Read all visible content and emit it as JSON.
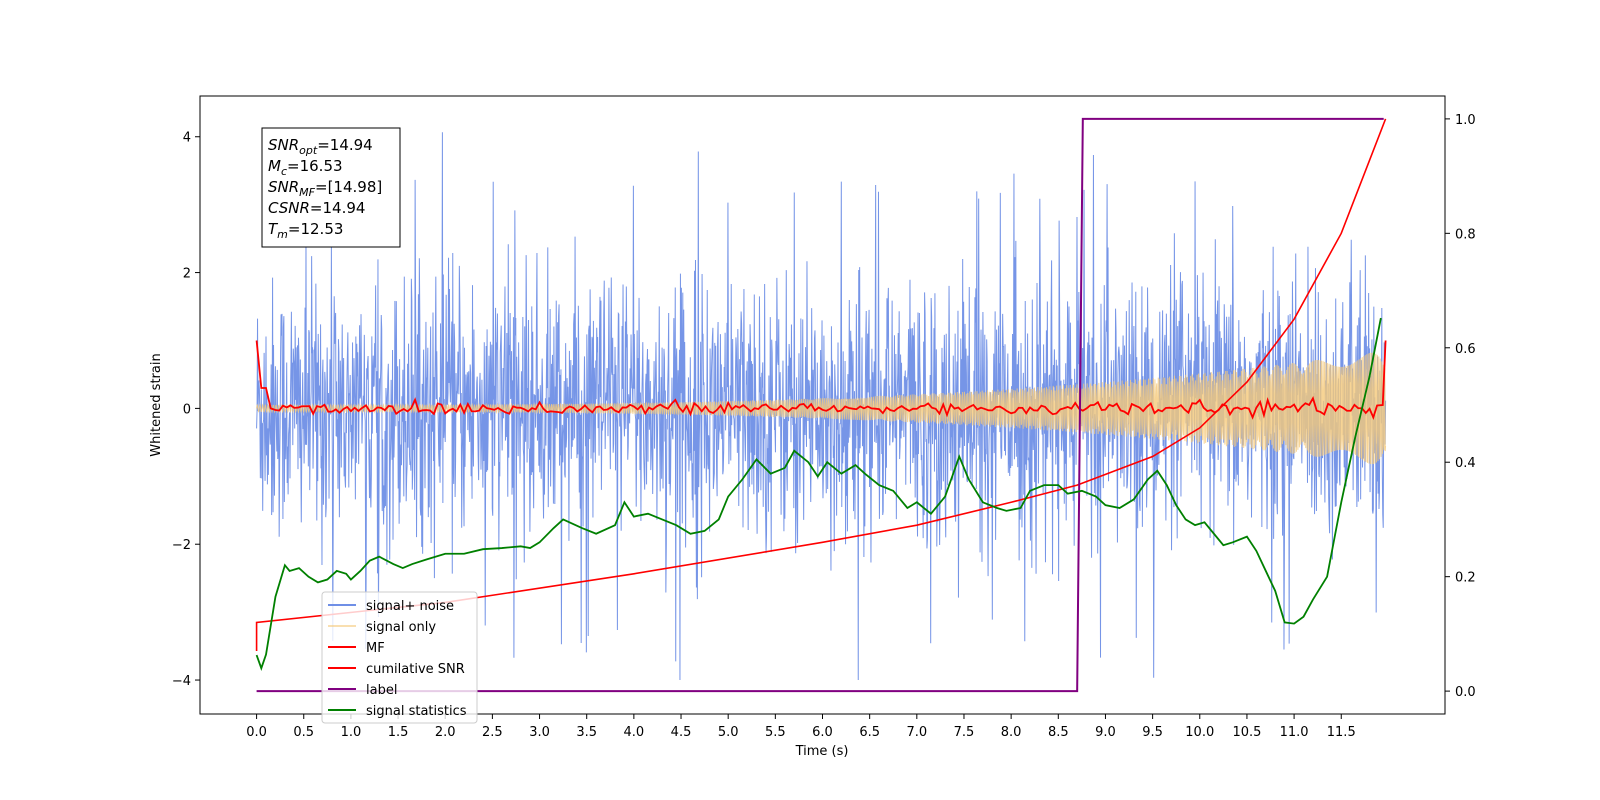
{
  "chart_data": {
    "type": "line",
    "xlabel": "Time (s)",
    "ylabel_left": "Whitened strain",
    "xlim": [
      -0.6,
      12.6
    ],
    "ylim_left": [
      -4.5,
      4.6
    ],
    "ylim_right": [
      -0.04,
      1.04
    ],
    "x_ticks": [
      "0.0",
      "0.5",
      "1.0",
      "1.5",
      "2.0",
      "2.5",
      "3.0",
      "3.5",
      "4.0",
      "4.5",
      "5.0",
      "5.5",
      "6.0",
      "6.5",
      "7.0",
      "7.5",
      "8.0",
      "8.5",
      "9.0",
      "9.5",
      "10.0",
      "10.5",
      "11.0",
      "11.5"
    ],
    "y_ticks_left": [
      "4",
      "2",
      "0",
      "−2",
      "−4"
    ],
    "y_ticks_right": [
      "1.0",
      "0.8",
      "0.6",
      "0.4",
      "0.2",
      "0.0"
    ],
    "annotation": [
      {
        "base": "SNR",
        "sub": "opt",
        "value": "=14.94"
      },
      {
        "base": "M",
        "sub": "c",
        "value": "=16.53"
      },
      {
        "base": "SNR",
        "sub": "MF",
        "value": "=[14.98]"
      },
      {
        "base": "CSNR",
        "sub": "",
        "value": "=14.94"
      },
      {
        "base": "T",
        "sub": "m",
        "value": "=12.53"
      }
    ],
    "legend_placement": "lower-left",
    "grid": false,
    "series": [
      {
        "name": "signal+ noise",
        "axis": "left",
        "color": "#6f8fe6",
        "description": "whitened noisy strain, amplitude ~ ±2.5 with spikes to ±4"
      },
      {
        "name": "signal only",
        "axis": "left",
        "color": "#f5c97a",
        "description": "chirp, amplitude grows from 0.05 to 0.85"
      },
      {
        "name": "MF",
        "axis": "left",
        "color": "#ff0000",
        "start": 1.0,
        "level": 0.0,
        "end": 1.0
      },
      {
        "name": "cumilative SNR",
        "axis": "right",
        "color": "#ff0000",
        "points": [
          [
            0.0,
            0.07
          ],
          [
            0.0,
            0.12
          ],
          [
            2.0,
            0.155
          ],
          [
            4.0,
            0.205
          ],
          [
            6.0,
            0.26
          ],
          [
            7.0,
            0.29
          ],
          [
            8.0,
            0.33
          ],
          [
            8.7,
            0.36
          ],
          [
            9.5,
            0.41
          ],
          [
            10.0,
            0.46
          ],
          [
            10.5,
            0.54
          ],
          [
            11.0,
            0.65
          ],
          [
            11.5,
            0.8
          ],
          [
            11.97,
            1.0
          ]
        ]
      },
      {
        "name": "label",
        "axis": "right",
        "color": "#800080",
        "points": [
          [
            0.0,
            0.0
          ],
          [
            8.7,
            0.0
          ],
          [
            8.76,
            1.0
          ],
          [
            11.95,
            1.0
          ]
        ]
      },
      {
        "name": "signal statistics",
        "axis": "right",
        "color": "#008000",
        "points": [
          [
            0.0,
            0.063
          ],
          [
            0.05,
            0.04
          ],
          [
            0.1,
            0.064
          ],
          [
            0.2,
            0.165
          ],
          [
            0.3,
            0.22
          ],
          [
            0.35,
            0.21
          ],
          [
            0.45,
            0.215
          ],
          [
            0.55,
            0.2
          ],
          [
            0.65,
            0.19
          ],
          [
            0.75,
            0.195
          ],
          [
            0.85,
            0.21
          ],
          [
            0.95,
            0.205
          ],
          [
            1.0,
            0.195
          ],
          [
            1.1,
            0.21
          ],
          [
            1.2,
            0.228
          ],
          [
            1.3,
            0.235
          ],
          [
            1.45,
            0.222
          ],
          [
            1.55,
            0.215
          ],
          [
            1.65,
            0.222
          ],
          [
            1.8,
            0.23
          ],
          [
            2.0,
            0.24
          ],
          [
            2.2,
            0.24
          ],
          [
            2.4,
            0.248
          ],
          [
            2.6,
            0.25
          ],
          [
            2.8,
            0.253
          ],
          [
            2.9,
            0.25
          ],
          [
            3.0,
            0.26
          ],
          [
            3.15,
            0.285
          ],
          [
            3.25,
            0.3
          ],
          [
            3.45,
            0.285
          ],
          [
            3.6,
            0.275
          ],
          [
            3.8,
            0.29
          ],
          [
            3.9,
            0.33
          ],
          [
            4.0,
            0.305
          ],
          [
            4.15,
            0.31
          ],
          [
            4.3,
            0.3
          ],
          [
            4.45,
            0.29
          ],
          [
            4.6,
            0.275
          ],
          [
            4.75,
            0.28
          ],
          [
            4.9,
            0.3
          ],
          [
            5.0,
            0.34
          ],
          [
            5.15,
            0.37
          ],
          [
            5.3,
            0.405
          ],
          [
            5.45,
            0.38
          ],
          [
            5.6,
            0.39
          ],
          [
            5.7,
            0.42
          ],
          [
            5.85,
            0.4
          ],
          [
            5.95,
            0.375
          ],
          [
            6.05,
            0.4
          ],
          [
            6.2,
            0.38
          ],
          [
            6.35,
            0.395
          ],
          [
            6.45,
            0.38
          ],
          [
            6.6,
            0.36
          ],
          [
            6.75,
            0.35
          ],
          [
            6.9,
            0.32
          ],
          [
            7.0,
            0.33
          ],
          [
            7.15,
            0.31
          ],
          [
            7.3,
            0.34
          ],
          [
            7.45,
            0.41
          ],
          [
            7.55,
            0.37
          ],
          [
            7.7,
            0.33
          ],
          [
            7.85,
            0.32
          ],
          [
            7.95,
            0.315
          ],
          [
            8.1,
            0.32
          ],
          [
            8.2,
            0.35
          ],
          [
            8.35,
            0.36
          ],
          [
            8.5,
            0.36
          ],
          [
            8.6,
            0.345
          ],
          [
            8.75,
            0.35
          ],
          [
            8.9,
            0.34
          ],
          [
            9.0,
            0.325
          ],
          [
            9.15,
            0.32
          ],
          [
            9.3,
            0.335
          ],
          [
            9.45,
            0.37
          ],
          [
            9.55,
            0.385
          ],
          [
            9.65,
            0.36
          ],
          [
            9.75,
            0.325
          ],
          [
            9.85,
            0.3
          ],
          [
            9.95,
            0.29
          ],
          [
            10.05,
            0.295
          ],
          [
            10.15,
            0.275
          ],
          [
            10.25,
            0.255
          ],
          [
            10.35,
            0.26
          ],
          [
            10.5,
            0.27
          ],
          [
            10.6,
            0.245
          ],
          [
            10.7,
            0.21
          ],
          [
            10.8,
            0.175
          ],
          [
            10.9,
            0.12
          ],
          [
            11.0,
            0.118
          ],
          [
            11.1,
            0.13
          ],
          [
            11.2,
            0.16
          ],
          [
            11.35,
            0.2
          ],
          [
            11.5,
            0.33
          ],
          [
            11.65,
            0.445
          ],
          [
            11.8,
            0.55
          ],
          [
            11.92,
            0.652
          ]
        ]
      }
    ]
  }
}
